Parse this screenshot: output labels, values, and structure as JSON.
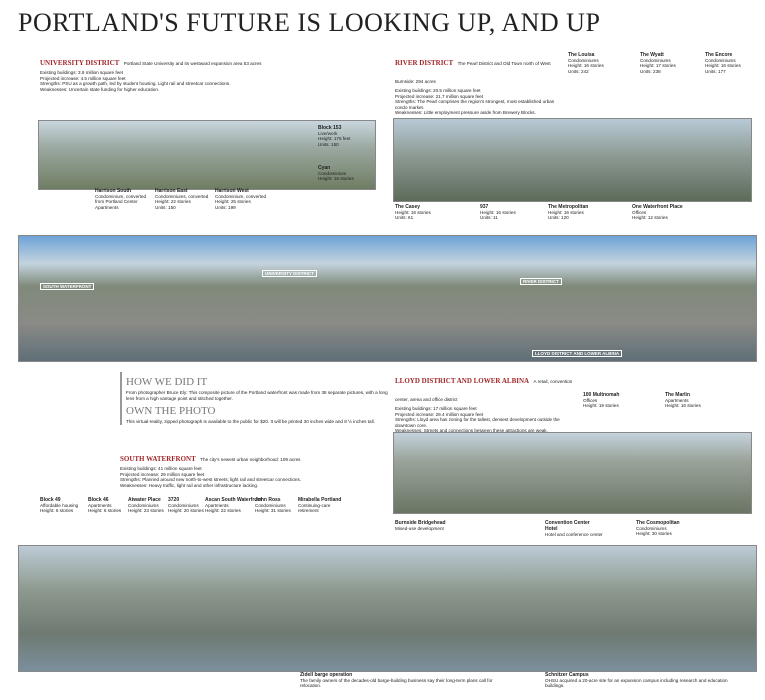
{
  "header": {
    "title": "PORTLAND'S FUTURE IS LOOKING UP, AND UP"
  },
  "university": {
    "heading": "UNIVERSITY DISTRICT",
    "intro": "Portland State University and its westward expansion area 53 acres",
    "lines": [
      "Existing buildings: 3.9 million square feet",
      "Projected increase: 4.5 million square feet",
      "Strengths: PSU as a growth path, led by student housing. Light rail and streetcar connections.",
      "Weaknesses: Uncertain state funding for higher education."
    ]
  },
  "river": {
    "heading": "RIVER DISTRICT",
    "intro": "The Pearl District and Old Town north of West Burnside: 294 acres",
    "lines": [
      "Existing buildings: 20.5 million square feet",
      "Projected increase: 21.7 million square feet",
      "Strengths: The Pearl comprises the region's strongest, most established urban condo market.",
      "Weaknesses: Little employment pressure aside from Brewery Blocks."
    ]
  },
  "lloyd": {
    "heading": "LLOYD DISTRICT AND LOWER ALBINA",
    "intro": "A retail, convention center, arena and office district",
    "lines": [
      "Existing buildings: 17 million square feet",
      "Projected increase: 29.4 million square feet",
      "Strengths: Lloyd area has zoning for the tallest, densest development outside the downtown core.",
      "Weaknesses: Streets and connections between these attractions are weak."
    ]
  },
  "south": {
    "heading": "SOUTH WATERFRONT",
    "intro": "The city's newest urban neighborhood: 109 acres",
    "lines": [
      "Existing buildings: 41 million square feet",
      "Projected increase: 29 million square feet",
      "Strengths: Planned around new north-to-west streets; light rail and streetcar connections.",
      "Weaknesses: Heavy traffic, light rail and other infrastructure lacking."
    ]
  },
  "method": {
    "heading": "HOW WE DID IT",
    "text": "From photographer Bruce Ely: This composite picture of the Portland waterfront was made from 38 separate pictures, with a long lens from a high vantage point and stitched together.",
    "heading2": "OWN THE PHOTO",
    "text2": "This virtual-reality, zipped photograph is available to the public for $20. It will be printed 30 inches wide and 8 ½ inches tall."
  },
  "panorama": {
    "labels": [
      "SOUTH WATERFRONT",
      "UNIVERSITY DISTRICT",
      "RIVER DISTRICT",
      "LLOYD DISTRICT AND LOWER ALBINA"
    ]
  },
  "buildings": [
    {
      "name": "Block 153",
      "lines": [
        "Live/work",
        "Height: 175 feet",
        "Units: 150"
      ]
    },
    {
      "name": "Cyan",
      "lines": [
        "Condominium",
        "Height: 16 stories"
      ]
    },
    {
      "name": "Harrison South",
      "lines": [
        "Condominium, converted",
        "from Portland Center",
        "Apartments"
      ]
    },
    {
      "name": "Harrison East",
      "lines": [
        "Condominiums, converted",
        "Height: 22 stories",
        "Units: 150"
      ]
    },
    {
      "name": "Harrison West",
      "lines": [
        "Condominium, converted",
        "Height: 25 stories",
        "Units: 199"
      ]
    },
    {
      "name": "The Louisa",
      "lines": [
        "Condominiums",
        "Height: 16 stories",
        "Units: 242"
      ]
    },
    {
      "name": "The Wyatt",
      "lines": [
        "Condominiums",
        "Height: 17 stories",
        "Units: 238"
      ]
    },
    {
      "name": "The Encore",
      "lines": [
        "Condominiums",
        "Height: 16 stories",
        "Units: 177"
      ]
    },
    {
      "name": "The Casey",
      "lines": [
        "Height: 16 stories",
        "Units: 61"
      ]
    },
    {
      "name": "937",
      "lines": [
        "Height: 16 stories",
        "Units: 11"
      ]
    },
    {
      "name": "The Metropolitan",
      "lines": [
        "Height: 16 stories",
        "Units: 120"
      ]
    },
    {
      "name": "One Waterfront Place",
      "lines": [
        "Offices",
        "Height: 12 stories"
      ]
    },
    {
      "name": "100 Multnomah",
      "lines": [
        "Offices",
        "Height: 19 stories"
      ]
    },
    {
      "name": "The Marlin",
      "lines": [
        "Apartments",
        "Height: 16 stories"
      ]
    },
    {
      "name": "Burnside Bridgehead",
      "lines": [
        "Mixed-use development"
      ]
    },
    {
      "name": "Convention Center Hotel",
      "lines": [
        "Hotel and conference center"
      ]
    },
    {
      "name": "The Cosmopolitan",
      "lines": [
        "Condominiums",
        "Height: 30 stories"
      ]
    },
    {
      "name": "Block 49",
      "lines": [
        "Affordable housing",
        "Height: 6 stories"
      ]
    },
    {
      "name": "Block 46",
      "lines": [
        "Apartments",
        "Height: 6 stories"
      ]
    },
    {
      "name": "Atwater Place",
      "lines": [
        "Condominiums",
        "Height: 23 stories"
      ]
    },
    {
      "name": "3720",
      "lines": [
        "Condominiums",
        "Height: 20 stories"
      ]
    },
    {
      "name": "Ascan South Waterfront",
      "lines": [
        "Apartments",
        "Height: 22 stories"
      ]
    },
    {
      "name": "John Ross",
      "lines": [
        "Condominiums",
        "Height: 31 stories"
      ]
    },
    {
      "name": "Mirabella Portland",
      "lines": [
        "Continuing-care",
        "retirement"
      ]
    }
  ],
  "captions": [
    {
      "name": "Zidell barge operation",
      "text": "The family owners of the decades-old barge-building business say their long-term plans call for relocation."
    },
    {
      "name": "Schnitzer Campus",
      "text": "OHSU acquired a 20-acre site for an expansion campus including research and education buildings."
    }
  ]
}
